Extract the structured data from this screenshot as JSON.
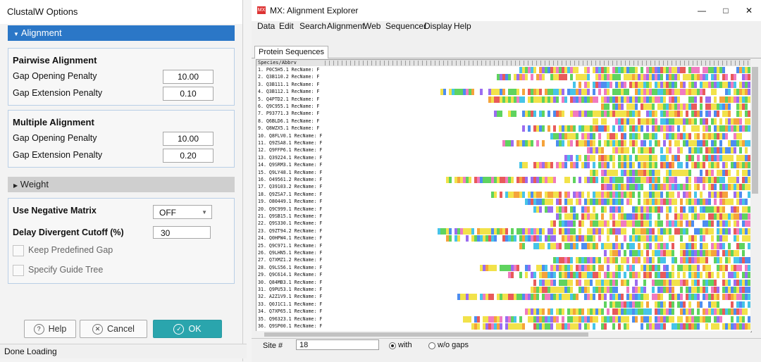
{
  "dialog": {
    "title": "ClustalW Options",
    "alignment_header": "Alignment",
    "pairwise": {
      "heading": "Pairwise Alignment",
      "gap_opening_label": "Gap Opening Penalty",
      "gap_opening_value": "10.00",
      "gap_extension_label": "Gap Extension Penalty",
      "gap_extension_value": "0.10"
    },
    "multiple": {
      "heading": "Multiple Alignment",
      "gap_opening_label": "Gap Opening Penalty",
      "gap_opening_value": "10.00",
      "gap_extension_label": "Gap Extension Penalty",
      "gap_extension_value": "0.20"
    },
    "weight_header": "Weight",
    "options": {
      "neg_matrix_label": "Use Negative Matrix",
      "neg_matrix_value": "OFF",
      "delay_label": "Delay Divergent Cutoff (%)",
      "delay_value": "30",
      "keep_label": "Keep Predefined Gap",
      "guide_label": "Specify Guide Tree"
    },
    "buttons": {
      "help": "Help",
      "cancel": "Cancel",
      "ok": "OK"
    },
    "status": "Done Loading"
  },
  "window": {
    "title": "MX: Alignment Explorer",
    "app_icon": "MX",
    "menus": [
      "Data",
      "Edit",
      "Search",
      "Alignment",
      "Web",
      "Sequencer",
      "Display",
      "Help"
    ],
    "tab": "Protein Sequences",
    "column_header": "Species/Abbrv",
    "rows": [
      "1. P0C5H5.1 RecName: F",
      "2. Q3B110.2 RecName: F",
      "3. Q3B111.1 RecName: F",
      "4. Q3B112.1 RecName: F",
      "5. Q4PTD2.1 RecName: F",
      "6. Q9C955.1 RecName: F",
      "7. P93771.3 RecName: F",
      "8. Q6BLD6.1 RecName: F",
      "9. Q8WZX5.1 RecName: F",
      "10. Q8FLV0.1 RecName: F",
      "11. Q9ZSA8.1 RecName: F",
      "12. Q9FFP6.1 RecName: F",
      "13. Q39224.1 RecName: F",
      "14. Q9SRM3.1 RecName: F",
      "15. Q9LY48.1 RecName: F",
      "16. O49561.2 RecName: F",
      "17. Q39103.2 RecName: F",
      "18. Q9ZSA7.1 RecName: F",
      "19. O80449.1 RecName: F",
      "20. Q9C999.1 RecName: F",
      "21. Q9SB15.1 RecName: F",
      "22. Q9S330.1 RecName: F",
      "23. Q9ZT94.2 RecName: F",
      "24. Q0HPW4.1 RecName: F",
      "25. Q9C971.1 RecName: F",
      "26. Q9LHN5.1 RecName: F",
      "27. Q7XMZ1.2 RecName: F",
      "28. Q9LS56.1 RecName: F",
      "29. Q9C614.1 RecName: F",
      "30. Q84MB3.1 RecName: F",
      "31. Q9PU53.1 RecName: F",
      "32. A2Z1V9.1 RecName: F",
      "33. Q0J1C1.1 RecName: F",
      "34. Q7XP65.1 RecName: F",
      "35. Q96323.1 RecName: F",
      "36. Q9SP00.1 RecName: F"
    ],
    "site_label": "Site #",
    "site_value": "18",
    "radio_with": "with",
    "radio_without": "w/o gaps"
  },
  "colors": {
    "accent": "#2b77c7",
    "ok": "#2aa5ad"
  },
  "icons": [
    "triangle-down-icon",
    "triangle-right-icon",
    "question-icon",
    "x-icon",
    "check-icon",
    "dropdown-icon",
    "minimize-icon",
    "maximize-icon",
    "close-icon"
  ]
}
